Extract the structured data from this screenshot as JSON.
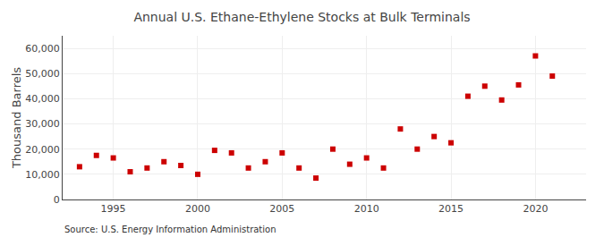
{
  "chart_data": {
    "type": "scatter",
    "title": "Annual U.S. Ethane-Ethylene Stocks at Bulk Terminals",
    "ylabel": "Thousand Barrels",
    "annotations": [
      "Source: U.S. Energy Information Administration"
    ],
    "x": [
      1993,
      1994,
      1995,
      1996,
      1997,
      1998,
      1999,
      2000,
      2001,
      2002,
      2003,
      2004,
      2005,
      2006,
      2007,
      2008,
      2009,
      2010,
      2011,
      2012,
      2013,
      2014,
      2015,
      2016,
      2017,
      2018,
      2019,
      2020,
      2021
    ],
    "values": [
      13000,
      17500,
      16500,
      11000,
      12500,
      15000,
      13500,
      10000,
      19500,
      18500,
      12500,
      15000,
      18500,
      12500,
      8500,
      20000,
      14000,
      16500,
      12500,
      28000,
      20000,
      25000,
      22500,
      41000,
      45000,
      39500,
      45500,
      57000,
      49000
    ],
    "color": "#cc0000",
    "marker": "square",
    "xlim": [
      1992,
      2023
    ],
    "xticks": [
      1995,
      2000,
      2005,
      2010,
      2015,
      2020
    ],
    "ylim": [
      0,
      65000
    ],
    "yticks": [
      0,
      {
        "value": 10000,
        "label": "10,000"
      },
      {
        "value": 20000,
        "label": "20,000"
      },
      {
        "value": 30000,
        "label": "30,000"
      },
      {
        "value": 40000,
        "label": "40,000"
      },
      {
        "value": 50000,
        "label": "50,000"
      },
      {
        "value": 60000,
        "label": "60,000"
      }
    ],
    "grid": true
  }
}
